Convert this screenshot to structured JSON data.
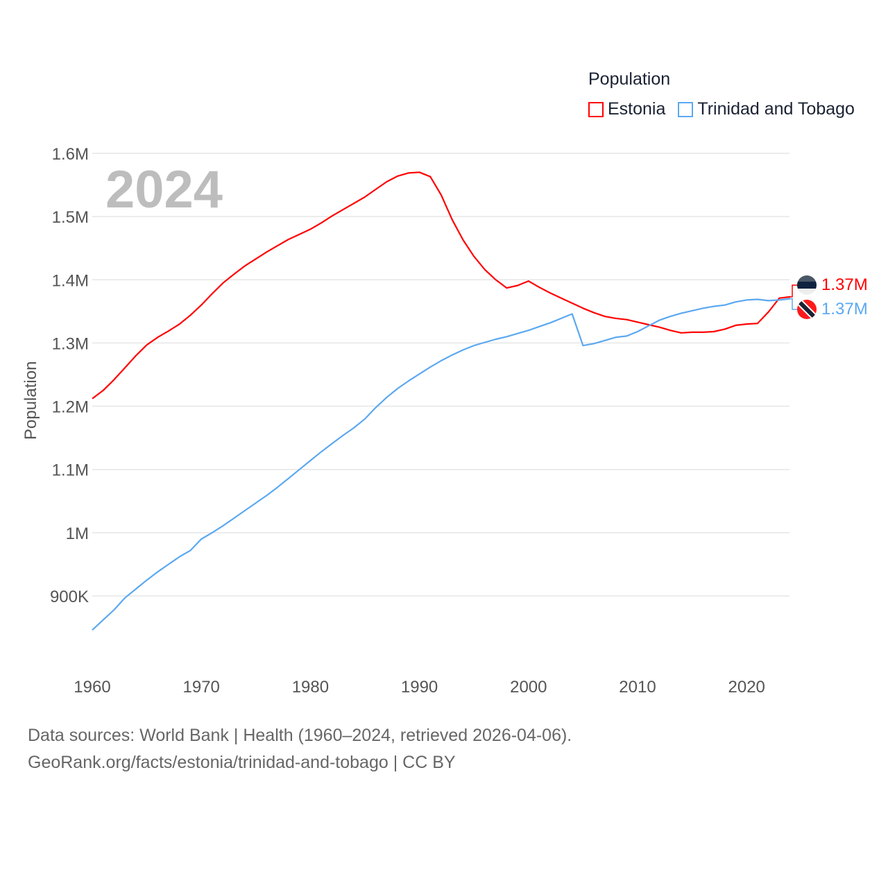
{
  "legend": {
    "title": "Population",
    "items": [
      {
        "label": "Estonia",
        "color": "#ff0000"
      },
      {
        "label": "Trinidad and Tobago",
        "color": "#5ba8f0"
      }
    ]
  },
  "year_label": "2024",
  "end_labels": {
    "estonia": "1.37M",
    "trinidad": "1.37M"
  },
  "footer": {
    "line1": "Data sources: World Bank | Health (1960–2024, retrieved 2026-04-06).",
    "line2": "GeoRank.org/facts/estonia/trinidad-and-tobago | CC BY"
  },
  "chart_data": {
    "type": "line",
    "title": "Population",
    "xlabel": "",
    "ylabel": "Population",
    "xlim": [
      1960,
      2024
    ],
    "ylim": [
      840000,
      1600000
    ],
    "grid": true,
    "legend_position": "top-right",
    "x_ticks": [
      1960,
      1970,
      1980,
      1990,
      2000,
      2010,
      2020
    ],
    "y_ticks": [
      {
        "v": 900000,
        "label": "900K"
      },
      {
        "v": 1000000,
        "label": "1M"
      },
      {
        "v": 1100000,
        "label": "1.1M"
      },
      {
        "v": 1200000,
        "label": "1.2M"
      },
      {
        "v": 1300000,
        "label": "1.3M"
      },
      {
        "v": 1400000,
        "label": "1.4M"
      },
      {
        "v": 1500000,
        "label": "1.5M"
      },
      {
        "v": 1600000,
        "label": "1.6M"
      }
    ],
    "x_start": 1960,
    "series": [
      {
        "name": "Estonia",
        "color": "#ff0000",
        "values": [
          1.212,
          1.225,
          1.242,
          1.261,
          1.28,
          1.297,
          1.309,
          1.319,
          1.33,
          1.344,
          1.36,
          1.378,
          1.395,
          1.409,
          1.422,
          1.433,
          1.444,
          1.454,
          1.464,
          1.472,
          1.48,
          1.49,
          1.501,
          1.511,
          1.521,
          1.531,
          1.543,
          1.555,
          1.564,
          1.569,
          1.57,
          1.563,
          1.534,
          1.495,
          1.463,
          1.437,
          1.416,
          1.4,
          1.387,
          1.391,
          1.398,
          1.388,
          1.379,
          1.371,
          1.363,
          1.355,
          1.348,
          1.342,
          1.339,
          1.337,
          1.333,
          1.329,
          1.325,
          1.32,
          1.316,
          1.317,
          1.317,
          1.318,
          1.322,
          1.328,
          1.33,
          1.331,
          1.349,
          1.371,
          1.373
        ]
      },
      {
        "name": "Trinidad and Tobago",
        "color": "#5ba8f0",
        "values": [
          0.846,
          0.862,
          0.878,
          0.897,
          0.911,
          0.925,
          0.938,
          0.95,
          0.962,
          0.972,
          0.99,
          1.0,
          1.011,
          1.023,
          1.035,
          1.047,
          1.059,
          1.072,
          1.086,
          1.1,
          1.114,
          1.128,
          1.141,
          1.154,
          1.166,
          1.18,
          1.198,
          1.214,
          1.228,
          1.24,
          1.251,
          1.262,
          1.272,
          1.281,
          1.289,
          1.296,
          1.301,
          1.306,
          1.31,
          1.315,
          1.32,
          1.326,
          1.332,
          1.339,
          1.346,
          1.296,
          1.299,
          1.304,
          1.309,
          1.311,
          1.318,
          1.327,
          1.336,
          1.342,
          1.347,
          1.351,
          1.355,
          1.358,
          1.36,
          1.365,
          1.368,
          1.369,
          1.367,
          1.368,
          1.37
        ]
      }
    ],
    "values_unit": "millions"
  }
}
